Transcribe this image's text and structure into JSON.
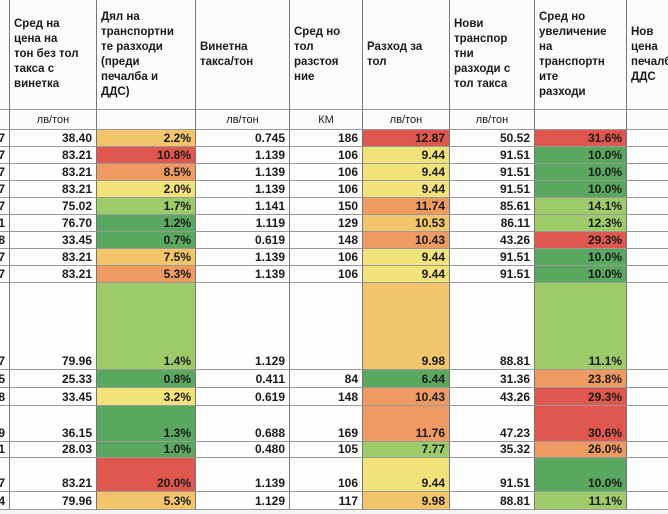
{
  "table": {
    "columns": [
      {},
      {
        "header": "Сред на\nцена на\nтон без тол\nтакса с\nвинетка",
        "unit": "лв/тон"
      },
      {
        "header": "Дял на\nтранспортни\nте разходи\n(преди\nпечалба и\nДДС)"
      },
      {
        "header": "Винетна\nтакса/тон",
        "unit": "лв/тон"
      },
      {
        "header": "Сред но\nтол\nразстоя\nние",
        "unit": "КМ"
      },
      {
        "header": "Разход за\nтол",
        "unit": "лв/тон"
      },
      {
        "header": "Нови\nтранспор\nтни\nразходи с\nтол такса",
        "unit": "лв/тон"
      },
      {
        "header": "Сред но\nувеличение\nна\nтранспортн\nите\nразходи"
      },
      {
        "header": "Нов\nцена\nпечалб\nДДС"
      }
    ],
    "rows": [
      [
        "7",
        "38.40",
        "2.2%",
        "0.745",
        "186",
        "12.87",
        "50.52",
        "31.6%"
      ],
      [
        "7",
        "83.21",
        "10.8%",
        "1.139",
        "106",
        "9.44",
        "91.51",
        "10.0%"
      ],
      [
        "7",
        "83.21",
        "8.5%",
        "1.139",
        "106",
        "9.44",
        "91.51",
        "10.0%"
      ],
      [
        "7",
        "83.21",
        "2.0%",
        "1.139",
        "106",
        "9.44",
        "91.51",
        "10.0%"
      ],
      [
        "7",
        "75.02",
        "1.7%",
        "1.141",
        "150",
        "11.74",
        "85.61",
        "14.1%"
      ],
      [
        "1",
        "76.70",
        "1.2%",
        "1.119",
        "129",
        "10.53",
        "86.11",
        "12.3%"
      ],
      [
        "8",
        "33.45",
        "0.7%",
        "0.619",
        "148",
        "10.43",
        "43.26",
        "29.3%"
      ],
      [
        "7",
        "83.21",
        "7.5%",
        "1.139",
        "106",
        "9.44",
        "91.51",
        "10.0%"
      ],
      [
        "7",
        "83.21",
        "5.3%",
        "1.139",
        "106",
        "9.44",
        "91.51",
        "10.0%"
      ],
      [
        "7",
        "79.96",
        "1.4%",
        "1.129",
        null,
        "9.98",
        "88.81",
        "11.1%"
      ],
      [
        "5",
        "25.33",
        "0.8%",
        "0.411",
        "84",
        "6.44",
        "31.36",
        "23.8%"
      ],
      [
        "8",
        "33.45",
        "3.2%",
        "0.619",
        "148",
        "10.43",
        "43.26",
        "29.3%"
      ],
      [
        "9",
        "36.15",
        "1.3%",
        "0.688",
        "169",
        "11.76",
        "47.23",
        "30.6%"
      ],
      [
        "1",
        "28.03",
        "1.0%",
        "0.480",
        "105",
        "7.77",
        "35.32",
        "26.0%"
      ],
      [
        "7",
        "83.21",
        "20.0%",
        "1.139",
        "106",
        "9.44",
        "91.51",
        "10.0%"
      ],
      [
        "4",
        "79.96",
        "5.3%",
        "1.129",
        "117",
        "9.98",
        "88.81",
        "11.1%"
      ]
    ]
  }
}
